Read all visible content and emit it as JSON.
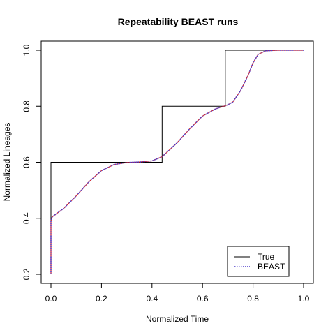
{
  "chart_data": {
    "type": "line",
    "title": "Repeatability BEAST runs",
    "xlabel": "Normalized Time",
    "ylabel": "Normalized Lineages",
    "xlim": [
      0,
      1
    ],
    "ylim": [
      0.2,
      1.0
    ],
    "x_ticks": [
      "0.0",
      "0.2",
      "0.4",
      "0.6",
      "0.8",
      "1.0"
    ],
    "y_ticks": [
      "0.2",
      "0.4",
      "0.6",
      "0.8",
      "1.0"
    ],
    "grid": false,
    "legend_position": "bottom-right",
    "series": [
      {
        "name": "True",
        "style": "solid-step",
        "color": "#000000",
        "x": [
          0.0,
          0.0,
          0.44,
          0.44,
          0.69,
          0.69,
          1.0
        ],
        "y": [
          0.2,
          0.6,
          0.6,
          0.8,
          0.8,
          1.0,
          1.0
        ]
      },
      {
        "name": "BEAST",
        "style": "dotted",
        "color": "#4b3cc8",
        "x": [
          0.0,
          0.0,
          0.005,
          0.05,
          0.1,
          0.15,
          0.2,
          0.25,
          0.3,
          0.35,
          0.4,
          0.44,
          0.5,
          0.55,
          0.6,
          0.65,
          0.7,
          0.72,
          0.75,
          0.78,
          0.8,
          0.82,
          0.85,
          0.9,
          1.0
        ],
        "y": [
          0.2,
          0.39,
          0.405,
          0.435,
          0.48,
          0.53,
          0.57,
          0.592,
          0.599,
          0.601,
          0.605,
          0.62,
          0.67,
          0.72,
          0.765,
          0.79,
          0.805,
          0.815,
          0.855,
          0.91,
          0.955,
          0.985,
          0.998,
          1.0,
          1.0
        ]
      }
    ]
  }
}
